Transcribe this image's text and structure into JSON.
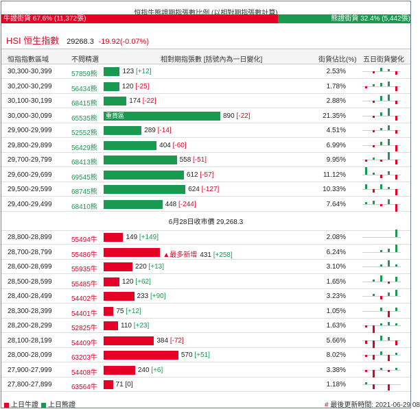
{
  "ratio": {
    "title": "恒指牛熊證期指張數比例 (以相對期指張數計算)",
    "bull_label": "牛證街貨 67.6% (11,372張)",
    "bear_label": "熊證街貨 32.4% (5,442張)",
    "bull_pct": 67.6,
    "colors": {
      "bull": "#e60026",
      "bear": "#1a9a50"
    }
  },
  "index": {
    "name": "HSI 恒生指數",
    "price": "29268.3",
    "change": "-19.92(-0.07%)"
  },
  "header": {
    "range": "恒指指數區域",
    "code": "不問精選",
    "contracts": "相對期指張數 [括號內為一日變化]",
    "pct": "街貨佔比(%)",
    "five_day": "五日街貨變化"
  },
  "bear_rows": [
    {
      "range": "30,300-30,399",
      "code": "57859熊",
      "contracts": 123,
      "change_label": "[+12]",
      "pct": "2.53%",
      "spark": [
        0,
        -1,
        2,
        1,
        -2
      ]
    },
    {
      "range": "30,200-30,299",
      "code": "56434熊",
      "contracts": 120,
      "change_label": "[-25]",
      "pct": "1.78%",
      "spark": [
        -1,
        1,
        2,
        3,
        -3
      ]
    },
    {
      "range": "30,100-30,199",
      "code": "68415熊",
      "contracts": 174,
      "change_label": "[-22]",
      "pct": "2.88%",
      "spark": [
        0,
        -1,
        3,
        4,
        -2
      ]
    },
    {
      "range": "30,000-30,099",
      "code": "65535熊",
      "contracts": 890,
      "change_label": "[-22]",
      "pct": "21.35%",
      "tag": "重貨區",
      "spark": [
        0,
        -1,
        2,
        5,
        -3
      ]
    },
    {
      "range": "29,900-29,999",
      "code": "52552熊",
      "contracts": 289,
      "change_label": "[-14]",
      "pct": "4.51%",
      "spark": [
        0,
        -1,
        1,
        3,
        -2
      ]
    },
    {
      "range": "29,800-29,899",
      "code": "56429熊",
      "contracts": 404,
      "change_label": "[-60]",
      "pct": "6.99%",
      "spark": [
        0,
        -1,
        2,
        4,
        -4
      ]
    },
    {
      "range": "29,700-29,799",
      "code": "68413熊",
      "contracts": 558,
      "change_label": "[-51]",
      "pct": "9.95%",
      "spark": [
        -1,
        1,
        -1,
        5,
        -3
      ]
    },
    {
      "range": "29,600-29,699",
      "code": "69545熊",
      "contracts": 612,
      "change_label": "[-57]",
      "pct": "11.12%",
      "spark": [
        5,
        1,
        -2,
        2,
        -3
      ]
    },
    {
      "range": "29,500-29,599",
      "code": "68745熊",
      "contracts": 624,
      "change_label": "[-127]",
      "pct": "10.33%",
      "spark": [
        3,
        -2,
        3,
        1,
        -4
      ]
    },
    {
      "range": "29,400-29,499",
      "code": "68410熊",
      "contracts": 448,
      "change_label": "[-244]",
      "pct": "7.64%",
      "spark": [
        1,
        2,
        -1,
        3,
        -5
      ]
    }
  ],
  "mid_label": "6月28日收市價 29,268.3",
  "bull_rows": [
    {
      "range": "28,800-28,899",
      "code": "55494牛",
      "contracts": 149,
      "change_label": "[+149]",
      "pct": "2.08%",
      "spark": [
        0,
        0,
        0,
        0,
        5
      ]
    },
    {
      "range": "28,700-28,799",
      "code": "55486牛",
      "contracts": 431,
      "change_label": "[+258]",
      "pct": "6.24%",
      "tag_new": "▲最多新增",
      "spark": [
        0,
        0,
        1,
        2,
        5
      ]
    },
    {
      "range": "28,600-28,699",
      "code": "55935牛",
      "contracts": 220,
      "change_label": "[+13]",
      "pct": "3.10%",
      "spark": [
        0,
        0,
        1,
        4,
        1
      ]
    },
    {
      "range": "28,500-28,599",
      "code": "55485牛",
      "contracts": 120,
      "change_label": "[+62]",
      "pct": "1.65%",
      "spark": [
        0,
        1,
        4,
        -1,
        3
      ]
    },
    {
      "range": "28,400-28,499",
      "code": "54402牛",
      "contracts": 233,
      "change_label": "[+90]",
      "pct": "3.23%",
      "spark": [
        0,
        1,
        -2,
        2,
        4
      ]
    },
    {
      "range": "28,300-28,399",
      "code": "54401牛",
      "contracts": 75,
      "change_label": "[+12]",
      "pct": "1.05%",
      "spark": [
        0,
        0,
        2,
        -4,
        2
      ]
    },
    {
      "range": "28,200-28,299",
      "code": "52825牛",
      "contracts": 110,
      "change_label": "[+23]",
      "pct": "1.63%",
      "spark": [
        -1,
        -5,
        1,
        2,
        1
      ]
    },
    {
      "range": "28,100-28,199",
      "code": "54409牛",
      "contracts": 384,
      "change_label": "[-72]",
      "pct": "5.66%",
      "spark": [
        -2,
        -5,
        3,
        2,
        -3
      ]
    },
    {
      "range": "28,000-28,099",
      "code": "63203牛",
      "contracts": 570,
      "change_label": "[+51]",
      "pct": "8.02%",
      "spark": [
        -1,
        -3,
        2,
        -4,
        1
      ]
    },
    {
      "range": "27,900-27,999",
      "code": "54408牛",
      "contracts": 240,
      "change_label": "[+6]",
      "pct": "3.38%",
      "spark": [
        -1,
        -5,
        1,
        -1,
        1
      ]
    },
    {
      "range": "27,800-27,899",
      "code": "63564牛",
      "contracts": 71,
      "change_label": "[0]",
      "pct": "1.18%",
      "spark": [
        1,
        -3,
        0,
        -4,
        0
      ]
    }
  ],
  "legend": {
    "bull": "上日牛證",
    "bear": "上日熊證",
    "updated_prefix": "#",
    "updated": "最後更新時間: 2021-06-29 08"
  }
}
